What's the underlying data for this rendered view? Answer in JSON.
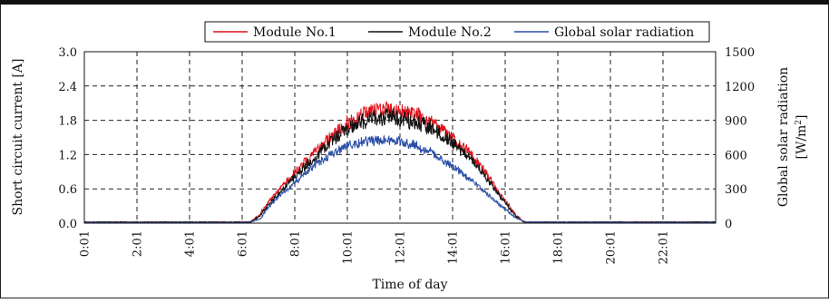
{
  "chart_data": {
    "type": "line",
    "title": "",
    "xlabel": "Time of day",
    "ylabel_left": "Short circuit current [A]",
    "ylabel_right_line1": "Global solar radiation",
    "ylabel_right_line2_prefix": "[W/m",
    "ylabel_right_line2_sup": "2",
    "ylabel_right_line2_suffix": "]",
    "x_domain_hours": [
      0,
      24
    ],
    "x_tick_labels": [
      "0:01",
      "2:01",
      "4:01",
      "6:01",
      "8:01",
      "10:01",
      "12:01",
      "14:01",
      "16:01",
      "18:01",
      "20:01",
      "22:01"
    ],
    "ylim_left": [
      0,
      3.0
    ],
    "y_ticks_left": [
      "0.0",
      "0.6",
      "1.2",
      "1.8",
      "2.4",
      "3.0"
    ],
    "ylim_right": [
      0,
      1500
    ],
    "y_ticks_right": [
      "0",
      "300",
      "600",
      "900",
      "1200",
      "1500"
    ],
    "grid": "dashed",
    "legend_position": "top-right",
    "series": [
      {
        "name": "Module No.1",
        "axis": "left",
        "color": "#e0101a",
        "profile_x": [
          0,
          6.3,
          6.6,
          7.0,
          7.5,
          8.0,
          8.5,
          9.0,
          9.5,
          10.0,
          10.5,
          11.0,
          11.5,
          12.0,
          12.5,
          13.0,
          13.5,
          14.0,
          14.5,
          15.0,
          15.5,
          16.0,
          16.4,
          16.7,
          24
        ],
        "profile_y": [
          0.02,
          0.02,
          0.12,
          0.4,
          0.68,
          0.95,
          1.2,
          1.45,
          1.68,
          1.88,
          2.02,
          2.1,
          2.12,
          2.1,
          2.05,
          1.95,
          1.8,
          1.6,
          1.38,
          1.12,
          0.78,
          0.42,
          0.15,
          0.02,
          0.02
        ]
      },
      {
        "name": "Module No.2",
        "axis": "left",
        "color": "#111111",
        "profile_x": [
          0,
          6.3,
          6.6,
          7.0,
          7.5,
          8.0,
          8.5,
          9.0,
          9.5,
          10.0,
          10.5,
          11.0,
          11.5,
          12.0,
          12.5,
          13.0,
          13.5,
          14.0,
          14.5,
          15.0,
          15.5,
          16.0,
          16.4,
          16.7,
          24
        ],
        "profile_y": [
          0.02,
          0.02,
          0.1,
          0.35,
          0.62,
          0.88,
          1.12,
          1.36,
          1.58,
          1.78,
          1.92,
          2.0,
          2.02,
          1.98,
          1.93,
          1.84,
          1.7,
          1.52,
          1.3,
          1.05,
          0.72,
          0.38,
          0.13,
          0.02,
          0.02
        ]
      },
      {
        "name": "Global solar radiation",
        "axis": "right",
        "color": "#2a4ea8",
        "profile_x": [
          0,
          6.3,
          6.7,
          7.0,
          7.5,
          8.0,
          8.5,
          9.0,
          9.5,
          10.0,
          10.5,
          11.0,
          11.5,
          12.0,
          12.5,
          13.0,
          13.5,
          14.0,
          14.5,
          15.0,
          15.5,
          16.0,
          16.4,
          16.8,
          24
        ],
        "profile_y": [
          5,
          5,
          40,
          150,
          270,
          380,
          480,
          580,
          660,
          720,
          750,
          765,
          770,
          760,
          730,
          680,
          610,
          530,
          440,
          340,
          230,
          130,
          50,
          8,
          5
        ]
      }
    ]
  }
}
